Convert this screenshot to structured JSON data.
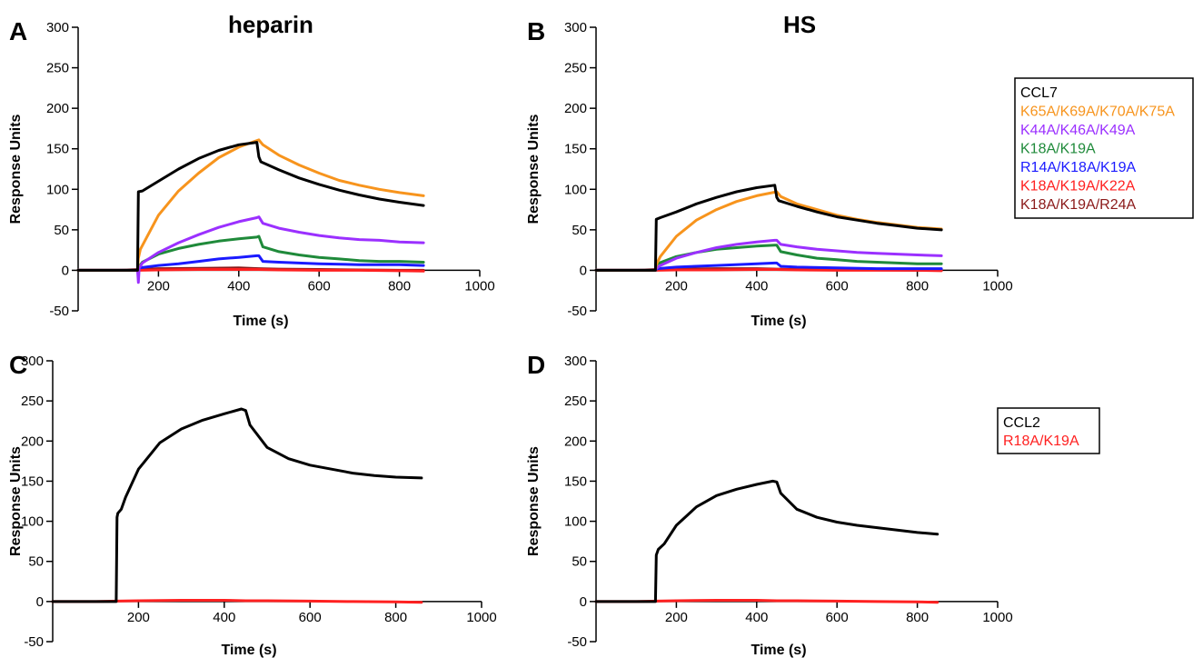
{
  "chart_data": [
    {
      "type": "line",
      "panel_label": "A",
      "title": "heparin",
      "xlabel": "Time (s)",
      "ylabel": "Response Units",
      "xlim": [
        0,
        1000
      ],
      "ylim": [
        -50,
        300
      ],
      "xticks": [
        200,
        400,
        600,
        800,
        1000
      ],
      "yticks": [
        -50,
        0,
        50,
        100,
        150,
        200,
        250,
        300
      ],
      "grid": false,
      "series": [
        {
          "name": "CCL7",
          "color": "#000000",
          "x": [
            0,
            100,
            148,
            150,
            160,
            200,
            250,
            300,
            350,
            400,
            445,
            450,
            455,
            500,
            550,
            600,
            650,
            700,
            750,
            800,
            860
          ],
          "y": [
            0,
            0,
            0,
            97,
            98,
            110,
            125,
            138,
            148,
            155,
            158,
            140,
            134,
            124,
            114,
            106,
            99,
            93,
            88,
            84,
            80
          ]
        },
        {
          "name": "K65A/K69A/K70A/K75A",
          "color": "#f7941d",
          "x": [
            0,
            100,
            148,
            150,
            155,
            200,
            250,
            300,
            350,
            400,
            450,
            460,
            500,
            550,
            600,
            650,
            700,
            750,
            800,
            860
          ],
          "y": [
            0,
            0,
            0,
            15,
            26,
            68,
            98,
            120,
            139,
            152,
            161,
            155,
            142,
            130,
            120,
            111,
            105,
            100,
            96,
            92
          ]
        },
        {
          "name": "K44A/K46A/K49A",
          "color": "#9b30ff",
          "x": [
            0,
            100,
            148,
            150,
            152,
            160,
            200,
            250,
            300,
            350,
            400,
            445,
            450,
            460,
            500,
            550,
            600,
            650,
            700,
            750,
            800,
            860
          ],
          "y": [
            0,
            0,
            0,
            -15,
            3,
            9,
            22,
            34,
            44,
            53,
            60,
            65,
            66,
            58,
            52,
            47,
            43,
            40,
            38,
            37,
            35,
            34
          ]
        },
        {
          "name": "K18A/K19A",
          "color": "#1f8a3a",
          "x": [
            0,
            100,
            148,
            152,
            160,
            200,
            250,
            300,
            350,
            400,
            445,
            450,
            460,
            500,
            550,
            600,
            650,
            700,
            750,
            800,
            860
          ],
          "y": [
            0,
            0,
            0,
            5,
            10,
            20,
            27,
            32,
            36,
            39,
            41,
            42,
            29,
            23,
            19,
            16,
            14,
            12,
            11,
            11,
            10
          ]
        },
        {
          "name": "R14A/K18A/K19A",
          "color": "#1a1aff",
          "x": [
            0,
            100,
            148,
            152,
            200,
            250,
            300,
            350,
            400,
            445,
            450,
            460,
            500,
            600,
            700,
            800,
            860
          ],
          "y": [
            0,
            0,
            0,
            3,
            6,
            8,
            11,
            14,
            16,
            18,
            18,
            11,
            10,
            8,
            7,
            7,
            6
          ]
        },
        {
          "name": "K18A/K19A/K22A",
          "color": "#ff2020",
          "x": [
            0,
            100,
            150,
            200,
            300,
            400,
            450,
            500,
            600,
            700,
            800,
            860
          ],
          "y": [
            0,
            0,
            0,
            0.5,
            1,
            1,
            1,
            0.5,
            0,
            0,
            -0.5,
            -1
          ]
        },
        {
          "name": "K18A/K19A/R24A",
          "color": "#8b1a1a",
          "x": [
            0,
            100,
            150,
            200,
            300,
            400,
            450,
            500,
            600,
            700,
            800,
            860
          ],
          "y": [
            0,
            0,
            1,
            2,
            2.5,
            3,
            2,
            1.5,
            1,
            0.5,
            0,
            0
          ]
        }
      ]
    },
    {
      "type": "line",
      "panel_label": "B",
      "title": "HS",
      "xlabel": "Time (s)",
      "ylabel": "Response Units",
      "xlim": [
        0,
        1000
      ],
      "ylim": [
        -50,
        300
      ],
      "xticks": [
        200,
        400,
        600,
        800,
        1000
      ],
      "yticks": [
        -50,
        0,
        50,
        100,
        150,
        200,
        250,
        300
      ],
      "grid": false,
      "legend": {
        "placement": "right",
        "entries": [
          {
            "label": "CCL7",
            "color": "#000000"
          },
          {
            "label": "K65A/K69A/K70A/K75A",
            "color": "#f7941d"
          },
          {
            "label": "K44A/K46A/K49A",
            "color": "#9b30ff"
          },
          {
            "label": "K18A/K19A",
            "color": "#1f8a3a"
          },
          {
            "label": "R14A/K18A/K19A",
            "color": "#1a1aff"
          },
          {
            "label": "K18A/K19A/K22A",
            "color": "#ff2020"
          },
          {
            "label": "K18A/K19A/R24A",
            "color": "#8b1a1a"
          }
        ]
      },
      "series": [
        {
          "name": "CCL7",
          "color": "#000000",
          "x": [
            0,
            100,
            148,
            150,
            160,
            200,
            250,
            300,
            350,
            400,
            445,
            450,
            455,
            500,
            550,
            600,
            650,
            700,
            750,
            800,
            860
          ],
          "y": [
            0,
            0,
            0,
            63,
            65,
            72,
            82,
            90,
            97,
            102,
            105,
            90,
            86,
            79,
            72,
            66,
            62,
            58,
            55,
            52,
            50
          ]
        },
        {
          "name": "K65A/K69A/K70A/K75A",
          "color": "#f7941d",
          "x": [
            0,
            100,
            148,
            150,
            160,
            200,
            250,
            300,
            350,
            400,
            450,
            460,
            500,
            550,
            600,
            650,
            700,
            750,
            800,
            860
          ],
          "y": [
            0,
            0,
            0,
            7,
            17,
            42,
            62,
            75,
            85,
            92,
            97,
            91,
            82,
            75,
            68,
            63,
            59,
            56,
            53,
            51
          ]
        },
        {
          "name": "K44A/K46A/K49A",
          "color": "#9b30ff",
          "x": [
            0,
            100,
            148,
            150,
            160,
            200,
            250,
            300,
            350,
            400,
            445,
            450,
            460,
            500,
            550,
            600,
            650,
            700,
            750,
            800,
            860
          ],
          "y": [
            0,
            0,
            0,
            2,
            6,
            15,
            22,
            28,
            32,
            35,
            37,
            37,
            32,
            29,
            26,
            24,
            22,
            21,
            20,
            19,
            18
          ]
        },
        {
          "name": "K18A/K19A",
          "color": "#1f8a3a",
          "x": [
            0,
            100,
            148,
            152,
            200,
            250,
            300,
            350,
            400,
            445,
            450,
            460,
            500,
            550,
            600,
            650,
            700,
            750,
            800,
            860
          ],
          "y": [
            0,
            0,
            0,
            8,
            17,
            22,
            26,
            28,
            30,
            31,
            31,
            23,
            19,
            15,
            13,
            11,
            10,
            9,
            8,
            8
          ]
        },
        {
          "name": "R14A/K18A/K19A",
          "color": "#1a1aff",
          "x": [
            0,
            100,
            148,
            152,
            200,
            300,
            400,
            445,
            450,
            460,
            500,
            600,
            700,
            800,
            860
          ],
          "y": [
            0,
            0,
            0,
            2,
            4,
            6,
            8,
            9,
            9,
            5,
            4,
            3,
            2,
            2,
            2
          ]
        },
        {
          "name": "K18A/K19A/K22A",
          "color": "#ff2020",
          "x": [
            0,
            100,
            150,
            200,
            300,
            400,
            450,
            500,
            600,
            700,
            800,
            860
          ],
          "y": [
            0,
            0,
            0,
            0.5,
            0.5,
            1,
            1,
            0.5,
            0,
            0,
            0,
            -0.5
          ]
        },
        {
          "name": "K18A/K19A/R24A",
          "color": "#8b1a1a",
          "x": [
            0,
            100,
            150,
            200,
            300,
            400,
            450,
            500,
            600,
            700,
            800,
            860
          ],
          "y": [
            0,
            0,
            1,
            1.5,
            2,
            2,
            1.5,
            1,
            0.5,
            0.5,
            0,
            0
          ]
        }
      ]
    },
    {
      "type": "line",
      "panel_label": "C",
      "title": "",
      "xlabel": "Time (s)",
      "ylabel": "Response Units",
      "xlim": [
        0,
        1000
      ],
      "ylim": [
        -50,
        300
      ],
      "xticks": [
        200,
        400,
        600,
        800,
        1000
      ],
      "yticks": [
        -50,
        0,
        50,
        100,
        150,
        200,
        250,
        300
      ],
      "grid": false,
      "series": [
        {
          "name": "CCL2",
          "color": "#000000",
          "x": [
            0,
            100,
            148,
            150,
            152,
            160,
            170,
            200,
            250,
            300,
            350,
            400,
            440,
            450,
            460,
            500,
            550,
            600,
            650,
            700,
            750,
            800,
            860
          ],
          "y": [
            0,
            0,
            0,
            105,
            110,
            115,
            130,
            165,
            198,
            215,
            226,
            234,
            240,
            238,
            220,
            192,
            178,
            170,
            165,
            160,
            157,
            155,
            154
          ]
        },
        {
          "name": "R18A/K19A",
          "color": "#ff2020",
          "x": [
            0,
            100,
            150,
            200,
            300,
            400,
            450,
            500,
            600,
            700,
            800,
            860
          ],
          "y": [
            0,
            0,
            0.5,
            1,
            1.5,
            1.5,
            1,
            1,
            0.5,
            0,
            -0.5,
            -1
          ]
        }
      ]
    },
    {
      "type": "line",
      "panel_label": "D",
      "title": "",
      "xlabel": "Time (s)",
      "ylabel": "Response Units",
      "xlim": [
        0,
        1000
      ],
      "ylim": [
        -50,
        300
      ],
      "xticks": [
        200,
        400,
        600,
        800,
        1000
      ],
      "yticks": [
        -50,
        0,
        50,
        100,
        150,
        200,
        250,
        300
      ],
      "grid": false,
      "legend": {
        "placement": "right",
        "entries": [
          {
            "label": "CCL2",
            "color": "#000000"
          },
          {
            "label": "R18A/K19A",
            "color": "#ff2020"
          }
        ]
      },
      "series": [
        {
          "name": "CCL2",
          "color": "#000000",
          "x": [
            0,
            100,
            148,
            150,
            155,
            170,
            200,
            250,
            300,
            350,
            400,
            440,
            450,
            460,
            500,
            550,
            600,
            650,
            700,
            750,
            800,
            850
          ],
          "y": [
            0,
            0,
            0,
            58,
            65,
            72,
            95,
            118,
            132,
            140,
            146,
            150,
            149,
            135,
            115,
            105,
            99,
            95,
            92,
            89,
            86,
            84
          ]
        },
        {
          "name": "R18A/K19A",
          "color": "#ff2020",
          "x": [
            0,
            100,
            150,
            200,
            300,
            400,
            450,
            500,
            600,
            700,
            800,
            850
          ],
          "y": [
            0,
            0,
            0.5,
            1,
            1.5,
            1.5,
            1,
            1,
            0.5,
            0,
            -0.5,
            -1
          ]
        }
      ]
    }
  ]
}
